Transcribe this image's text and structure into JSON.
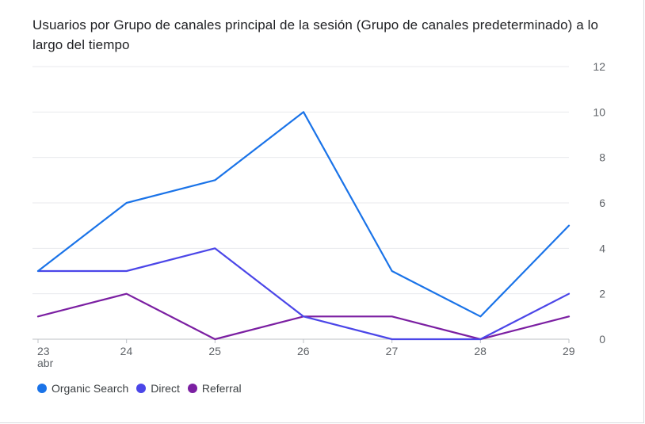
{
  "chart": {
    "title": "Usuarios por Grupo de canales principal de la sesión (Grupo de canales predeterminado) a lo largo del tiempo"
  },
  "chart_data": {
    "type": "line",
    "title": "Usuarios por Grupo de canales principal de la sesión (Grupo de canales predeterminado) a lo largo del tiempo",
    "x": [
      "23",
      "24",
      "25",
      "26",
      "27",
      "28",
      "29"
    ],
    "x_sublabel": {
      "23": "abr"
    },
    "xlabel": "",
    "ylabel": "",
    "ylim": [
      0,
      12
    ],
    "yticks": [
      0,
      2,
      4,
      6,
      8,
      10,
      12
    ],
    "y_axis_side": "right",
    "grid": true,
    "legend_position": "bottom-left",
    "series": [
      {
        "name": "Organic Search",
        "color": "#1a73e8",
        "values": [
          3,
          6,
          7,
          10,
          3,
          1,
          5
        ]
      },
      {
        "name": "Direct",
        "color": "#4b46e8",
        "values": [
          3,
          3,
          4,
          1,
          0,
          0,
          2
        ]
      },
      {
        "name": "Referral",
        "color": "#7b1fa2",
        "values": [
          1,
          2,
          0,
          1,
          1,
          0,
          1
        ]
      }
    ]
  }
}
